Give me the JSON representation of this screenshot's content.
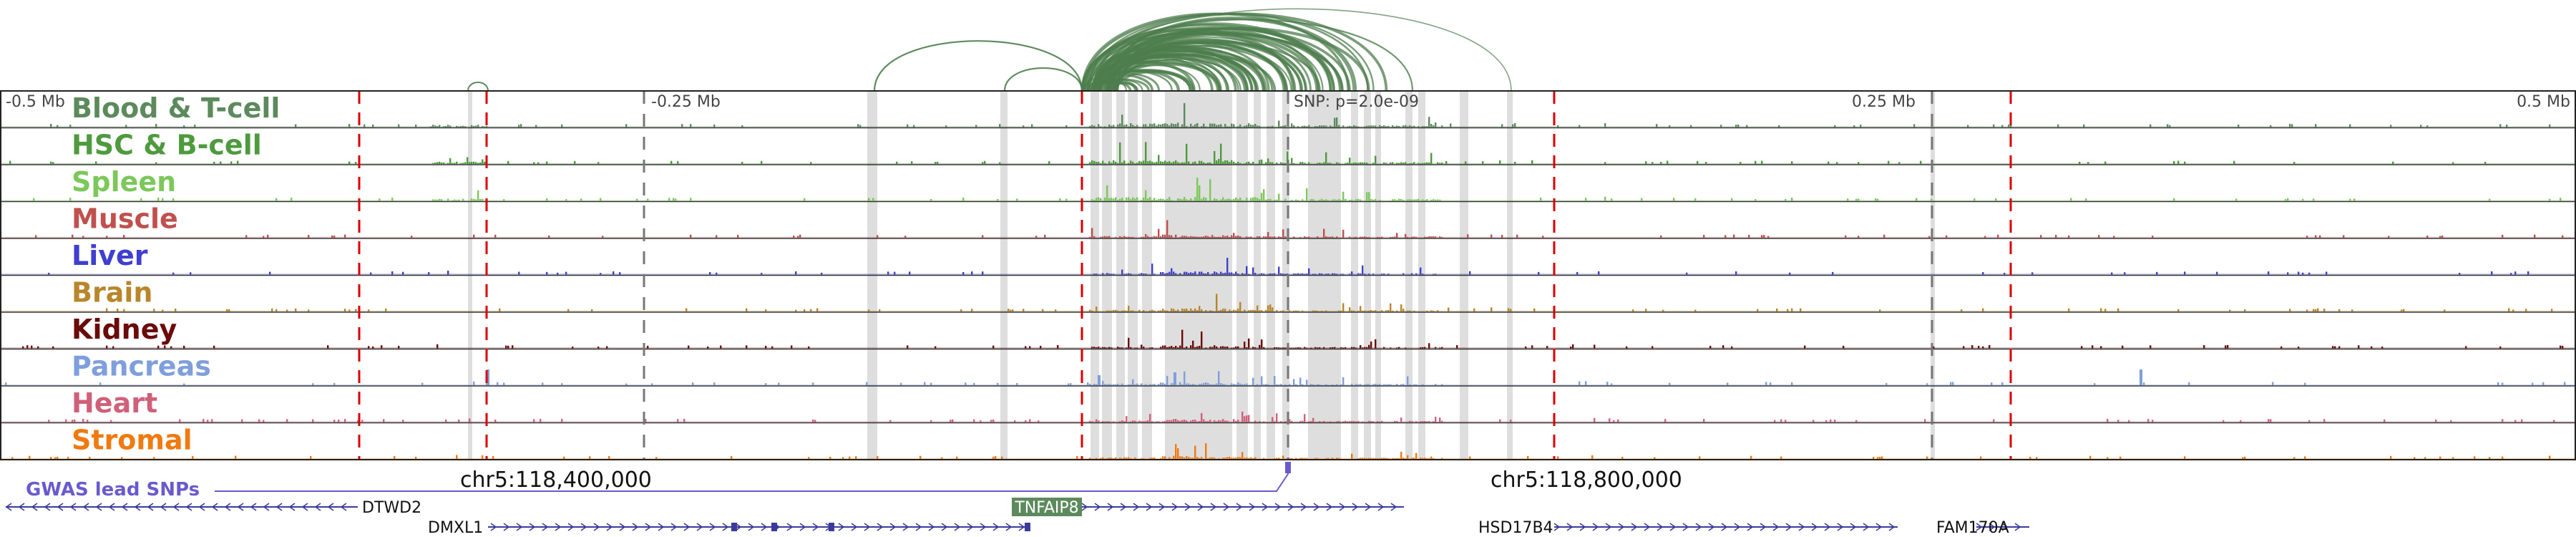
{
  "axis": {
    "left_label": "-0.5 Mb",
    "mid_left_label": "-0.25 Mb",
    "mid_right_label": "0.25 Mb",
    "right_label": "0.5 Mb",
    "snp_label": "SNP: p=2.0e-09"
  },
  "tracks": [
    {
      "name": "Blood & T-cell",
      "color": "#5c8a5c"
    },
    {
      "name": "HSC & B-cell",
      "color": "#4e9a3e"
    },
    {
      "name": "Spleen",
      "color": "#7cc85a"
    },
    {
      "name": "Muscle",
      "color": "#c0504d"
    },
    {
      "name": "Liver",
      "color": "#3f3fd0"
    },
    {
      "name": "Brain",
      "color": "#b8862b"
    },
    {
      "name": "Kidney",
      "color": "#6b0a0a"
    },
    {
      "name": "Pancreas",
      "color": "#7f9fdc"
    },
    {
      "name": "Heart",
      "color": "#d0607a"
    },
    {
      "name": "Stromal",
      "color": "#f07a10"
    }
  ],
  "gwas": {
    "label": "GWAS lead SNPs",
    "color": "#6a5acd"
  },
  "coordinates": {
    "left": "chr5:118,400,000",
    "right": "chr5:118,800,000"
  },
  "genes": [
    {
      "name": "DTWD2",
      "strand": "-"
    },
    {
      "name": "DMXL1",
      "strand": "+"
    },
    {
      "name": "TNFAIP8",
      "strand": "+",
      "highlight": true,
      "highlight_color": "#5c8a5c"
    },
    {
      "name": "HSD17B4",
      "strand": "+"
    },
    {
      "name": "FAM170A",
      "strand": "+"
    }
  ],
  "colors": {
    "arc": "#4e7d4e",
    "tad_boundary": "#dd0000",
    "gene": "#3b3b9c",
    "highlight_band": "#d3d3d3"
  }
}
